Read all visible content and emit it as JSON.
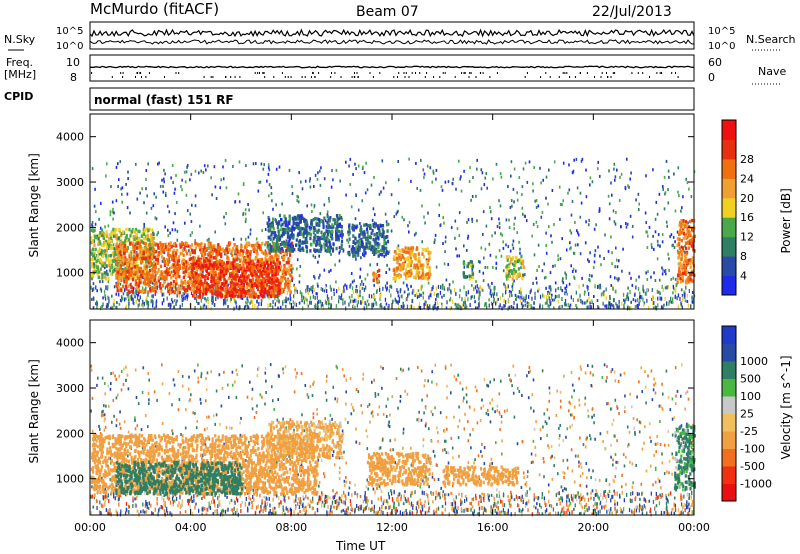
{
  "header": {
    "station": "McMurdo (fitACF)",
    "beam": "Beam 07",
    "date": "22/Jul/2013"
  },
  "aux": {
    "nsky_label": "N.Sky",
    "nsearch_label": "N.Search",
    "freq_label": "Freq.",
    "freq_unit": "[MHz]",
    "nave_label": "Nave",
    "cpid_label": "CPID",
    "cpid_value": "normal (fast) 151 RF",
    "noise_ticks": [
      "10^5",
      "10^0"
    ],
    "freq_ticks": [
      "10",
      "8"
    ],
    "nave_ticks": [
      "60",
      "0"
    ]
  },
  "colors": {
    "power_scale": [
      "#1f2be8",
      "#2a4aa8",
      "#2f7f64",
      "#4aa84a",
      "#f0d020",
      "#f0a030",
      "#f07010",
      "#e83010",
      "#f01010"
    ],
    "velocity_scale": [
      "#e81010",
      "#f03010",
      "#f07020",
      "#f0a040",
      "#f0c060",
      "#c8c8c8",
      "#4ab840",
      "#2f7f64",
      "#2a4aa8",
      "#1e3cc8"
    ]
  },
  "chart_data": [
    {
      "type": "heatmap",
      "title": "Power",
      "xlabel": "",
      "ylabel": "Slant Range [km]",
      "xlim": [
        "00:00",
        "00:00"
      ],
      "ylim": [
        200,
        4500
      ],
      "x_tick_labels": [
        "00:00",
        "04:00",
        "08:00",
        "12:00",
        "16:00",
        "20:00",
        "00:00"
      ],
      "y_tick_labels": [
        "1000",
        "2000",
        "3000",
        "4000"
      ],
      "colorbar_label": "Power [dB]",
      "colorbar_ticks": [
        "4",
        "8",
        "12",
        "16",
        "20",
        "24",
        "28"
      ],
      "colorbar_range": [
        0,
        32
      ],
      "regions": [
        {
          "t": [
            0.0,
            2.5
          ],
          "range": [
            900,
            2000
          ],
          "value": 16
        },
        {
          "t": [
            1.0,
            8.0
          ],
          "range": [
            600,
            1700
          ],
          "value": 26
        },
        {
          "t": [
            4.0,
            7.5
          ],
          "range": [
            500,
            1300
          ],
          "value": 30
        },
        {
          "t": [
            7.0,
            10.0
          ],
          "range": [
            1500,
            2300
          ],
          "value": 8
        },
        {
          "t": [
            10.2,
            11.8
          ],
          "range": [
            1400,
            2100
          ],
          "value": 8
        },
        {
          "t": [
            11.2,
            11.5
          ],
          "range": [
            800,
            1100
          ],
          "value": 26
        },
        {
          "t": [
            12.0,
            13.5
          ],
          "range": [
            900,
            1600
          ],
          "value": 22
        },
        {
          "t": [
            14.8,
            15.2
          ],
          "range": [
            900,
            1300
          ],
          "value": 14
        },
        {
          "t": [
            16.5,
            17.2
          ],
          "range": [
            900,
            1400
          ],
          "value": 16
        },
        {
          "t": [
            23.3,
            24.0
          ],
          "range": [
            800,
            2200
          ],
          "value": 26
        }
      ]
    },
    {
      "type": "heatmap",
      "title": "Velocity",
      "xlabel": "Time UT",
      "ylabel": "Slant Range [km]",
      "xlim": [
        "00:00",
        "00:00"
      ],
      "ylim": [
        200,
        4500
      ],
      "x_tick_labels": [
        "00:00",
        "04:00",
        "08:00",
        "12:00",
        "16:00",
        "20:00",
        "00:00"
      ],
      "y_tick_labels": [
        "1000",
        "2000",
        "3000",
        "4000"
      ],
      "colorbar_label": "Velocity [m s^-1]",
      "colorbar_ticks": [
        "-1000",
        "-500",
        "-100",
        "-25",
        "25",
        "100",
        "500",
        "1000"
      ],
      "regions": [
        {
          "t": [
            0.0,
            9.0
          ],
          "range": [
            700,
            2000
          ],
          "value": -300
        },
        {
          "t": [
            1.0,
            6.0
          ],
          "range": [
            700,
            1400
          ],
          "value": 300
        },
        {
          "t": [
            7.0,
            10.0
          ],
          "range": [
            1500,
            2300
          ],
          "value": -200
        },
        {
          "t": [
            11.0,
            13.5
          ],
          "range": [
            900,
            1600
          ],
          "value": -300
        },
        {
          "t": [
            14.0,
            17.0
          ],
          "range": [
            900,
            1300
          ],
          "value": -300
        },
        {
          "t": [
            23.2,
            24.0
          ],
          "range": [
            800,
            2200
          ],
          "value": 200
        }
      ]
    }
  ]
}
